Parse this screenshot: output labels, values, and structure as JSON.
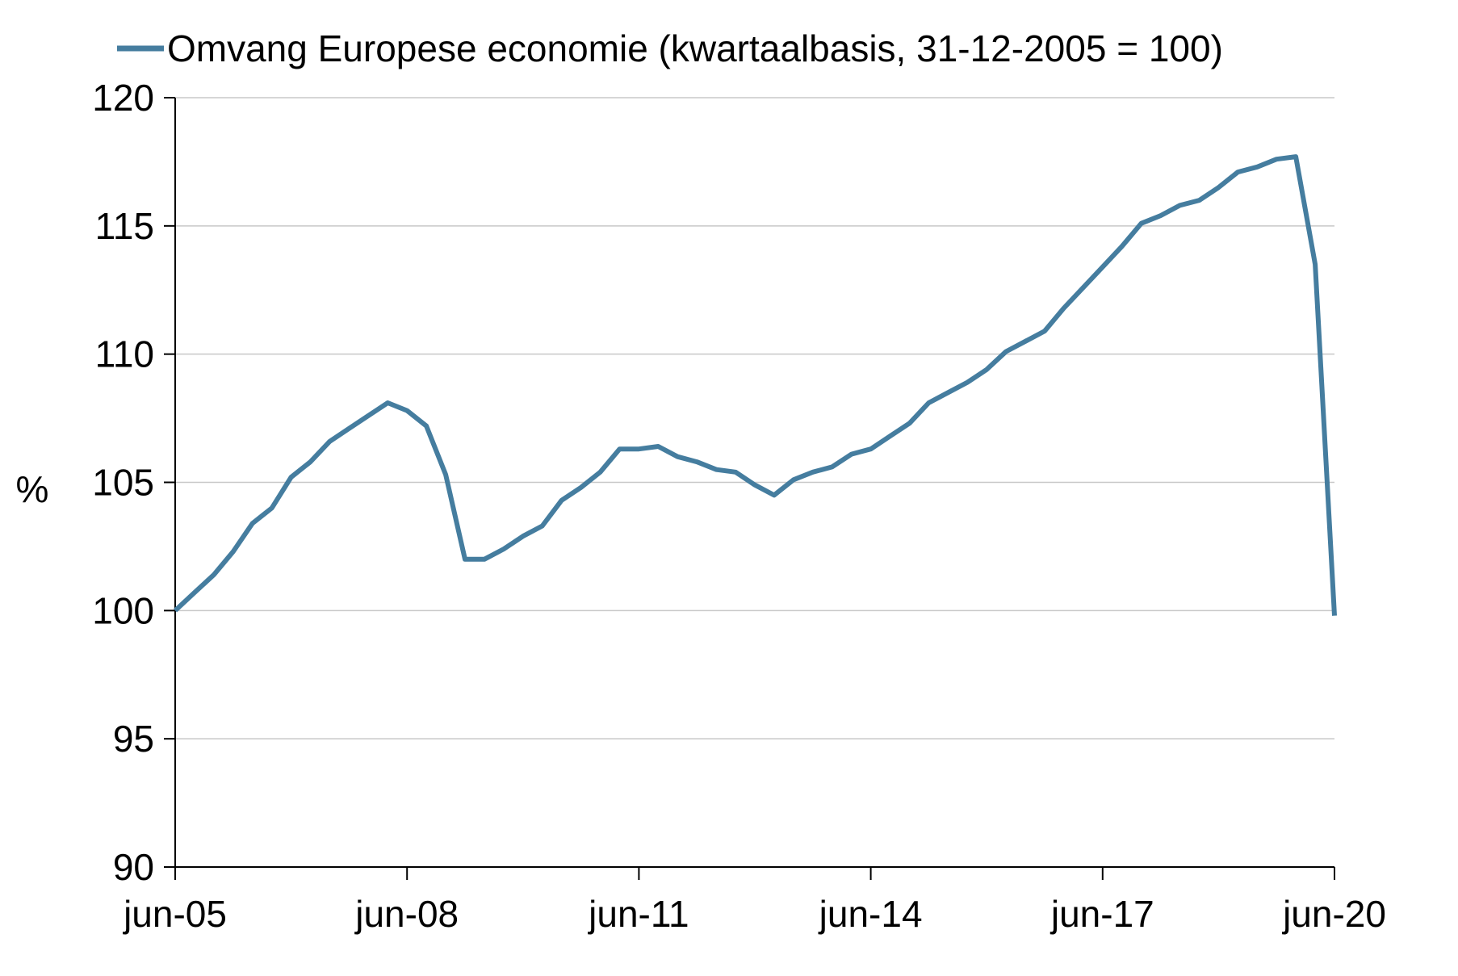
{
  "chart_data": {
    "type": "line",
    "legend": "top",
    "ylabel": "%",
    "ylim": [
      90,
      120
    ],
    "yticks": [
      90,
      95,
      100,
      105,
      110,
      115,
      120
    ],
    "grid": true,
    "line_color": "#457d9f",
    "x_tick_labels": [
      "jun-05",
      "jun-08",
      "jun-11",
      "jun-14",
      "jun-17",
      "jun-20"
    ],
    "x_tick_positions": [
      0,
      12,
      24,
      36,
      48,
      60
    ],
    "series": [
      {
        "name": "Omvang Europese economie (kwartaalbasis, 31-12-2005 = 100)",
        "x": [
          0,
          1,
          2,
          3,
          4,
          5,
          6,
          7,
          8,
          9,
          10,
          11,
          12,
          13,
          14,
          15,
          16,
          17,
          18,
          19,
          20,
          21,
          22,
          23,
          24,
          25,
          26,
          27,
          28,
          29,
          30,
          31,
          32,
          33,
          34,
          35,
          36,
          37,
          38,
          39,
          40,
          41,
          42,
          43,
          44,
          45,
          46,
          47,
          48,
          49,
          50,
          51,
          52,
          53,
          54,
          55,
          56,
          57,
          58,
          59,
          60
        ],
        "values": [
          100.0,
          100.7,
          101.4,
          102.3,
          103.4,
          104.0,
          105.2,
          105.8,
          106.6,
          107.1,
          107.6,
          108.1,
          107.8,
          107.2,
          105.3,
          102.0,
          102.0,
          102.4,
          102.9,
          103.3,
          104.3,
          104.8,
          105.4,
          106.3,
          106.3,
          106.4,
          106.0,
          105.8,
          105.5,
          105.4,
          104.9,
          104.5,
          105.1,
          105.4,
          105.6,
          106.1,
          106.3,
          106.8,
          107.3,
          108.1,
          108.5,
          108.9,
          109.4,
          110.1,
          110.5,
          110.9,
          111.8,
          112.6,
          113.4,
          114.2,
          115.1,
          115.4,
          115.8,
          116.0,
          116.5,
          117.1,
          117.3,
          117.6,
          117.7,
          113.5,
          99.8
        ]
      }
    ]
  }
}
